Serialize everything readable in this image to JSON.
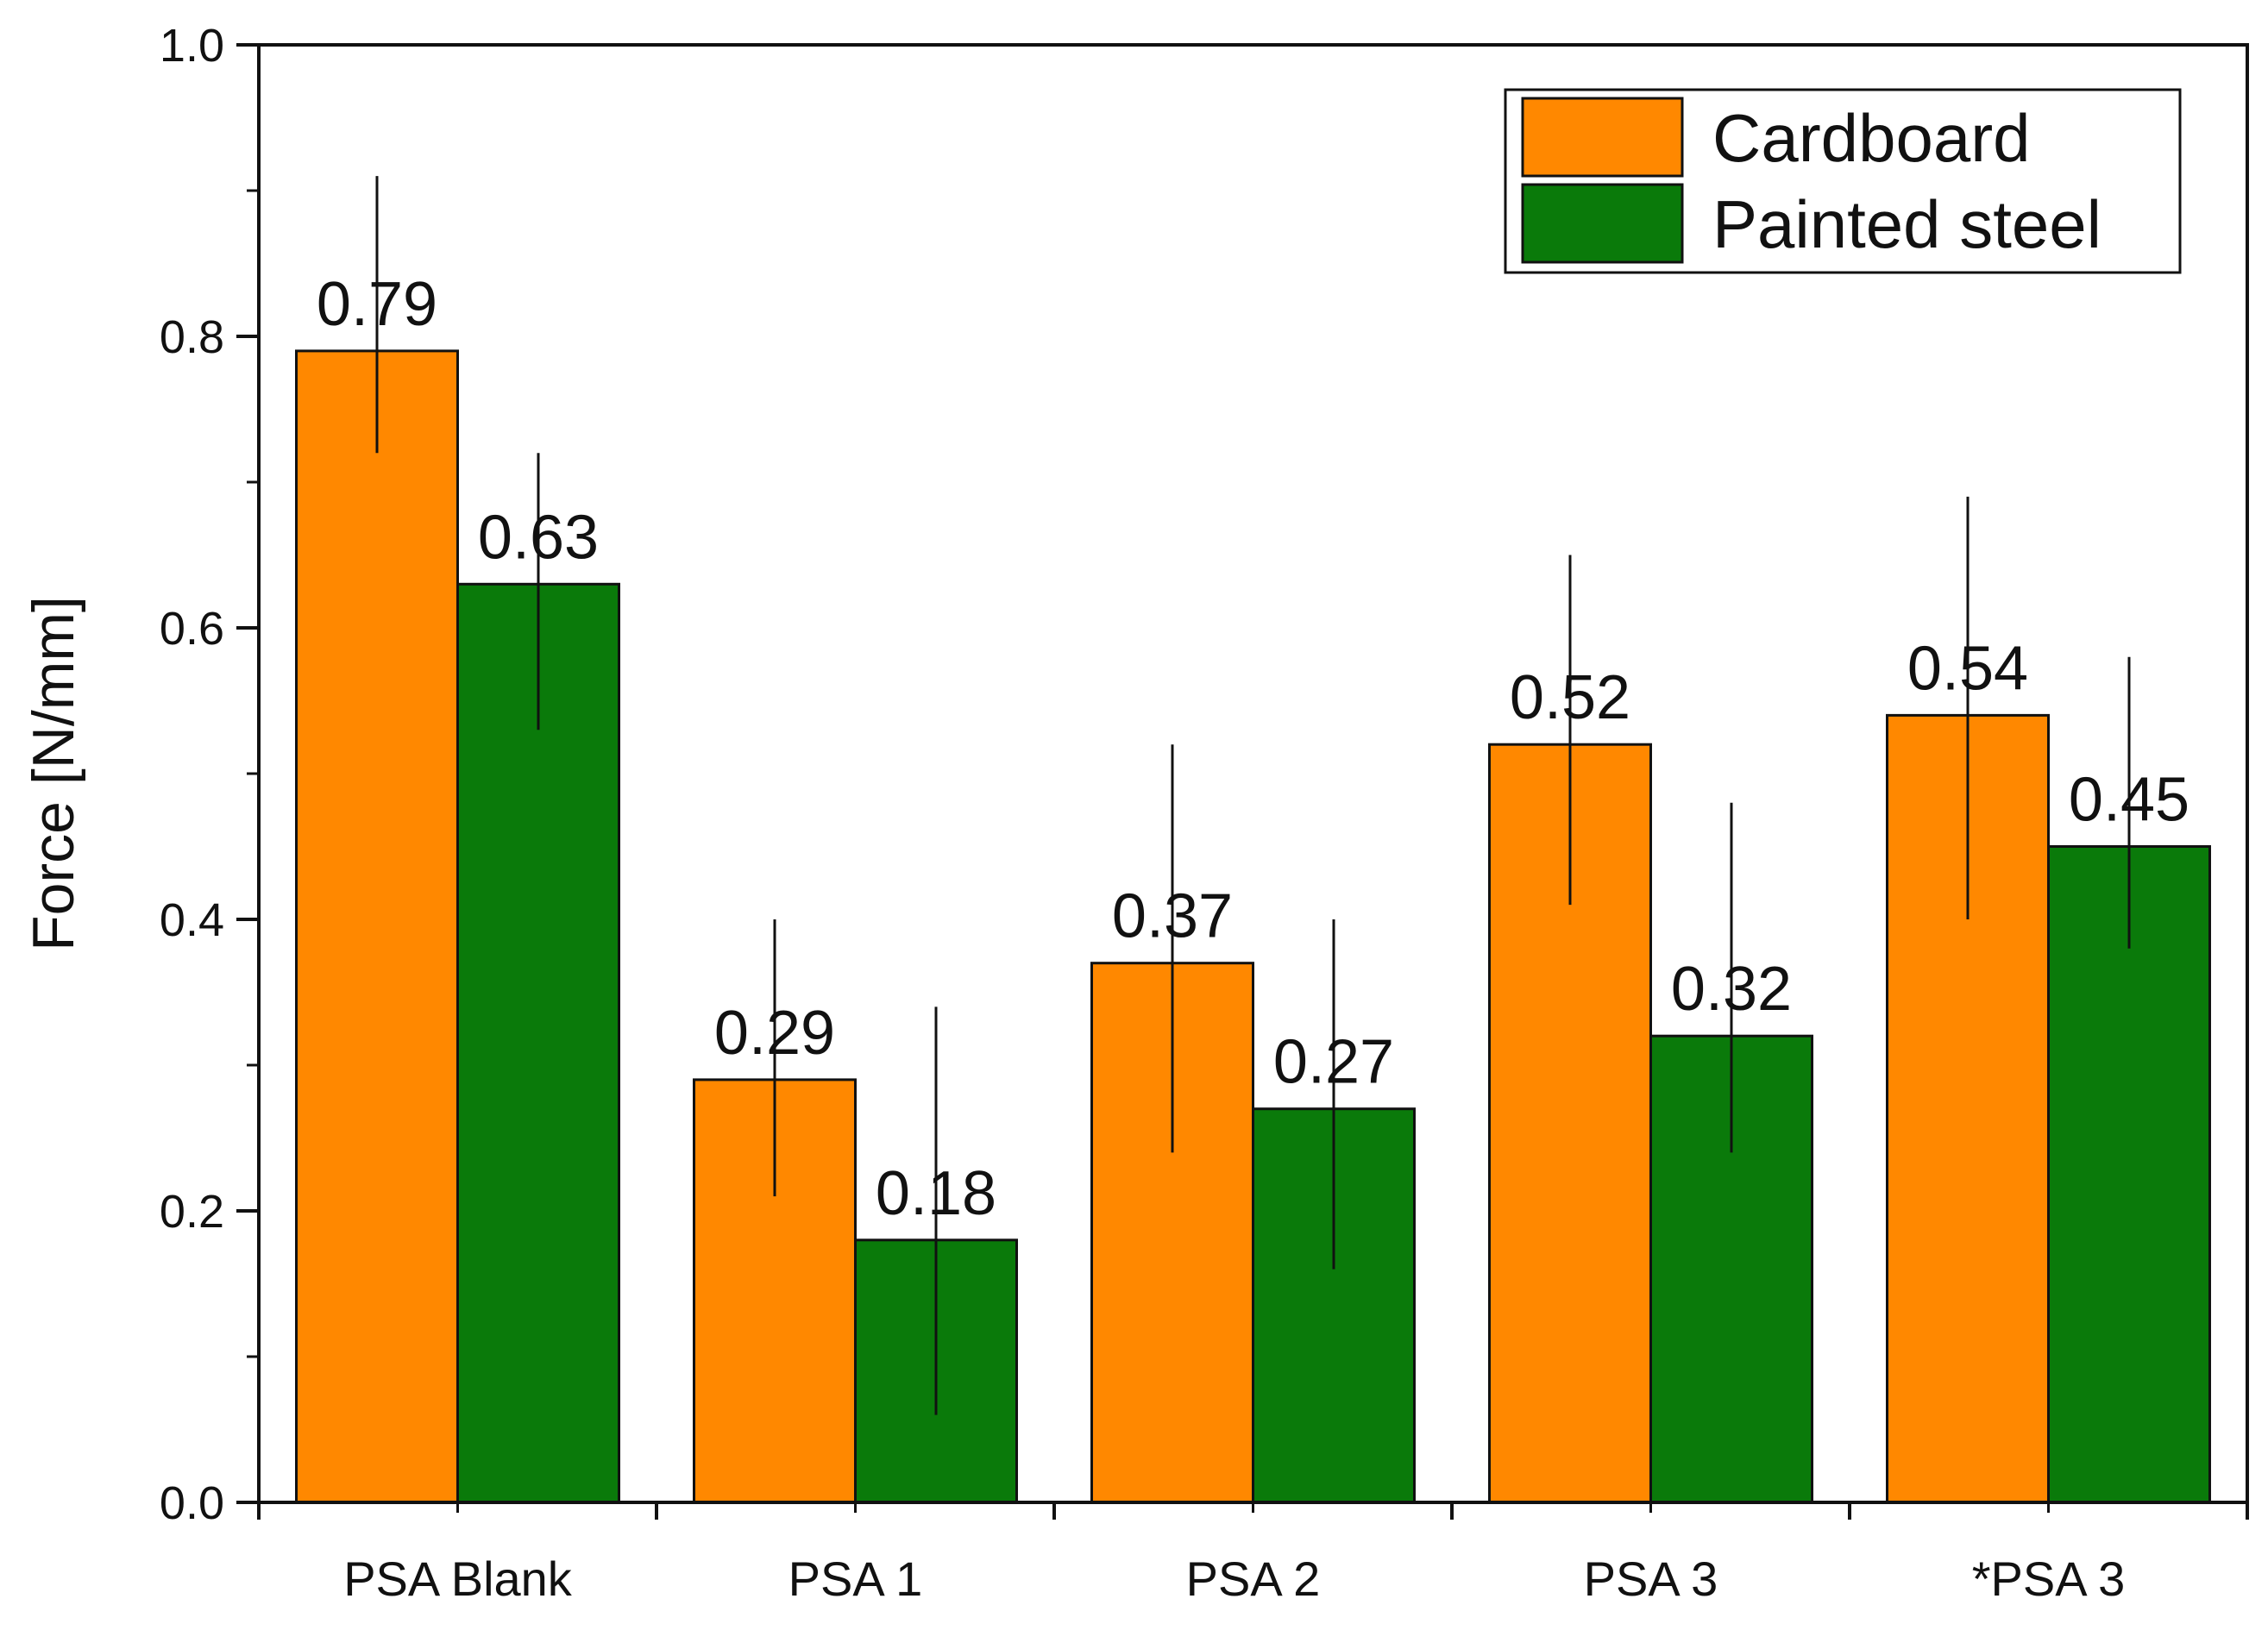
{
  "chart_data": {
    "type": "bar",
    "title": "",
    "xlabel": "",
    "ylabel": "Force [N/mm]",
    "ylim": [
      0,
      1.0
    ],
    "yticks": [
      0.0,
      0.2,
      0.4,
      0.6,
      0.8,
      1.0
    ],
    "ytick_labels": [
      "0.0",
      "0.2",
      "0.4",
      "0.6",
      "0.8",
      "1.0"
    ],
    "categories": [
      "PSA Blank",
      "PSA 1",
      "PSA 2",
      "PSA 3",
      "*PSA 3"
    ],
    "legend_position": "top-right",
    "series": [
      {
        "name": "Cardboard",
        "color": "#ff8800",
        "values": [
          0.79,
          0.29,
          0.37,
          0.52,
          0.54
        ],
        "value_labels": [
          "0.79",
          "0.29",
          "0.37",
          "0.52",
          "0.54"
        ],
        "error_low": [
          0.72,
          0.21,
          0.24,
          0.41,
          0.4
        ],
        "error_high": [
          0.91,
          0.4,
          0.52,
          0.65,
          0.69
        ]
      },
      {
        "name": "Painted steel",
        "color": "#0a7a0a",
        "values": [
          0.63,
          0.18,
          0.27,
          0.32,
          0.45
        ],
        "value_labels": [
          "0.63",
          "0.18",
          "0.27",
          "0.32",
          "0.45"
        ],
        "error_low": [
          0.53,
          0.06,
          0.16,
          0.24,
          0.38
        ],
        "error_high": [
          0.72,
          0.34,
          0.4,
          0.48,
          0.58
        ]
      }
    ]
  }
}
